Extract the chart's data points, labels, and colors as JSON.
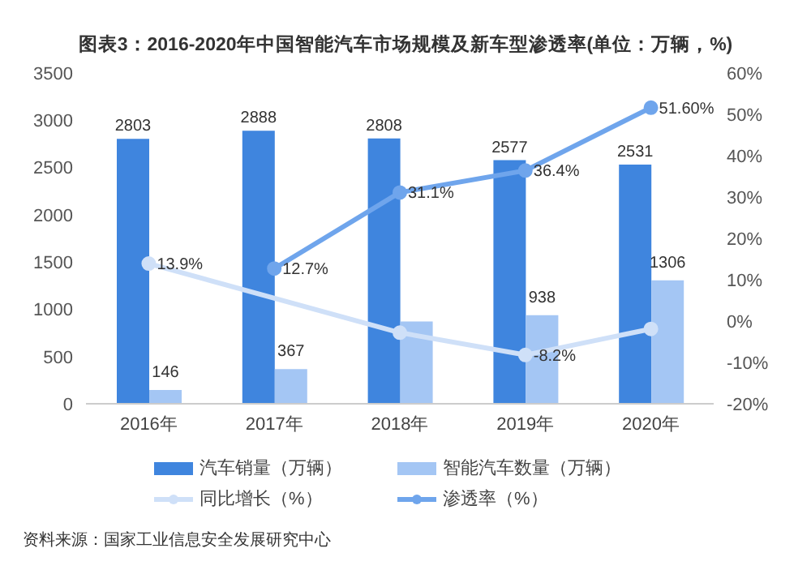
{
  "chart_data": {
    "type": "bar",
    "title": "图表3：2016-2020年中国智能汽车市场规模及新车型渗透率(单位：万辆，%)",
    "categories": [
      "2016年",
      "2017年",
      "2018年",
      "2019年",
      "2020年"
    ],
    "series": [
      {
        "name": "汽车销量（万辆）",
        "color": "#3f85de",
        "values": [
          2803,
          2888,
          2808,
          2577,
          2531
        ],
        "value_labels": [
          "2803",
          "2888",
          "2808",
          "2577",
          "2531"
        ]
      },
      {
        "name": "智能汽车数量（万辆）",
        "color": "#a4c6f4",
        "values": [
          146,
          367,
          870,
          938,
          1306
        ],
        "value_labels": [
          "146",
          "367",
          null,
          "938",
          "1306"
        ]
      },
      {
        "name": "同比增长（%）",
        "type": "line",
        "axis": "y2",
        "color": "#cfe0f8",
        "values": [
          13.9,
          null,
          -2.8,
          -8.2,
          -1.9
        ],
        "value_labels": [
          "13.9%",
          null,
          null,
          "-8.2%",
          null
        ]
      },
      {
        "name": "渗透率（%）",
        "type": "line",
        "axis": "y2",
        "color": "#6fa5ec",
        "values": [
          null,
          12.7,
          31.1,
          36.4,
          51.6
        ],
        "value_labels": [
          null,
          "12.7%",
          "31.1%",
          "36.4%",
          "51.60%"
        ]
      }
    ],
    "ylim": [
      0,
      3500
    ],
    "yticks": [
      0,
      500,
      1000,
      1500,
      2000,
      2500,
      3000,
      3500
    ],
    "y2lim": [
      -20,
      60
    ],
    "y2ticks": [
      {
        "value": -20,
        "label": "-20%"
      },
      {
        "value": -10,
        "label": "-10%"
      },
      {
        "value": 0,
        "label": "0%"
      },
      {
        "value": 10,
        "label": "10%"
      },
      {
        "value": 20,
        "label": "20%"
      },
      {
        "value": 30,
        "label": "30%"
      },
      {
        "value": 40,
        "label": "40%"
      },
      {
        "value": 50,
        "label": "50%"
      },
      {
        "value": 60,
        "label": "60%"
      }
    ],
    "marker": "circle",
    "legend": "bottom",
    "annotations": [
      "资料来源：国家工业信息安全发展研究中心"
    ]
  }
}
